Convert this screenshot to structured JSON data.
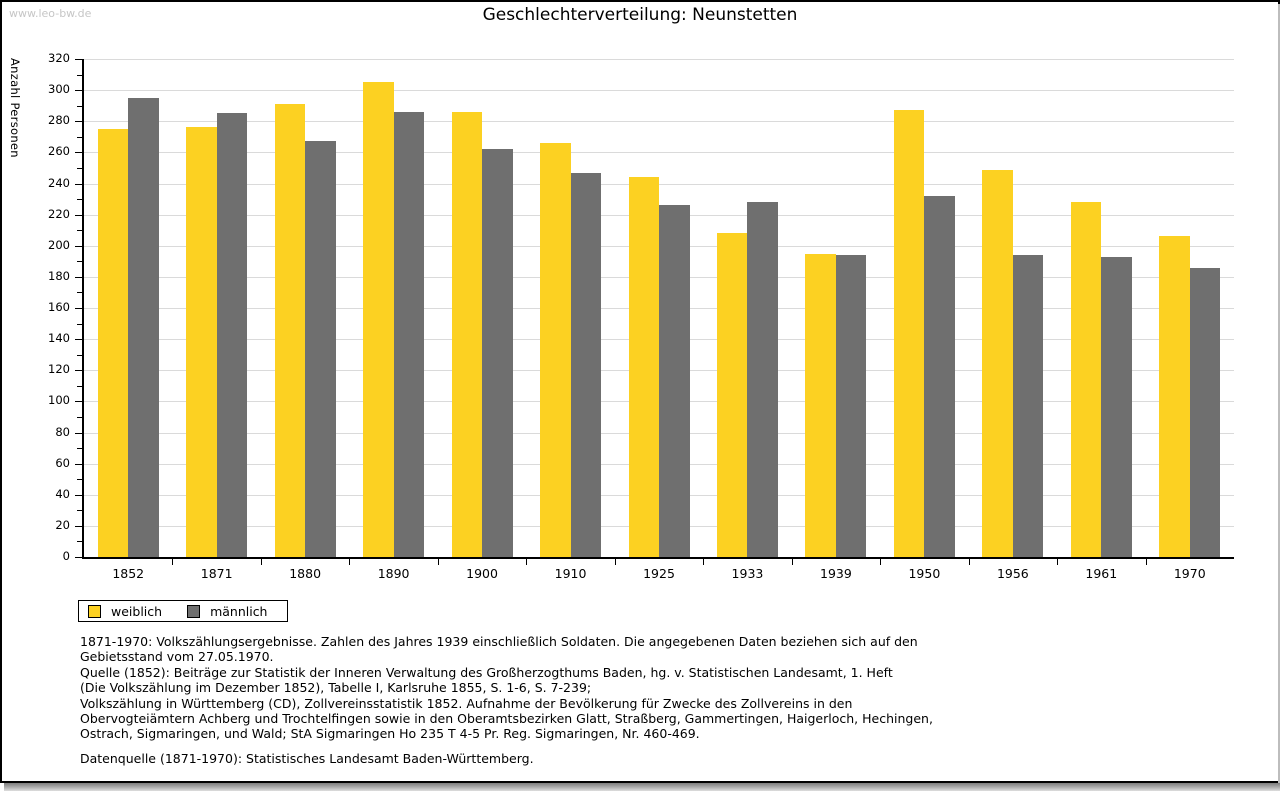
{
  "watermark": "www.leo-bw.de",
  "title": "Geschlechterverteilung: Neunstetten",
  "chart_data": {
    "type": "bar",
    "title": "Geschlechterverteilung: Neunstetten",
    "ylabel": "Anzahl Personen",
    "xlabel": "",
    "ylim": [
      0,
      320
    ],
    "ytick_step": 20,
    "ytick_minor_step": 10,
    "grid": true,
    "legend_position": "bottom-left",
    "categories": [
      "1852",
      "1871",
      "1880",
      "1890",
      "1900",
      "1910",
      "1925",
      "1933",
      "1939",
      "1950",
      "1956",
      "1961",
      "1970"
    ],
    "series": [
      {
        "name": "weiblich",
        "color": "#FCD122",
        "values": [
          275,
          276,
          291,
          305,
          286,
          266,
          244,
          208,
          195,
          287,
          249,
          228,
          206
        ]
      },
      {
        "name": "männlich",
        "color": "#6F6F6F",
        "values": [
          295,
          285,
          267,
          286,
          262,
          247,
          226,
          228,
          194,
          232,
          194,
          193,
          186
        ]
      }
    ]
  },
  "legend": {
    "items": [
      {
        "label": "weiblich",
        "color": "#FCD122"
      },
      {
        "label": "männlich",
        "color": "#6F6F6F"
      }
    ]
  },
  "footer": {
    "lines": [
      "1871-1970: Volkszählungsergebnisse. Zahlen des Jahres 1939 einschließlich Soldaten. Die angegebenen Daten beziehen sich auf den",
      "Gebietsstand vom 27.05.1970.",
      "Quelle (1852): Beiträge zur Statistik der Inneren Verwaltung des Großherzogthums Baden, hg. v. Statistischen Landesamt, 1. Heft",
      "(Die Volkszählung im Dezember 1852), Tabelle I, Karlsruhe 1855, S. 1-6, S. 7-239;",
      "Volkszählung in Württemberg (CD), Zollvereinsstatistik 1852. Aufnahme der Bevölkerung für Zwecke des Zollvereins in den",
      "Obervogteiämtern Achberg und Trochtelfingen sowie in den Oberamtsbezirken Glatt, Straßberg, Gammertingen, Haigerloch, Hechingen,",
      "Ostrach, Sigmaringen, und Wald; StA Sigmaringen Ho 235 T 4-5 Pr. Reg. Sigmaringen, Nr. 460-469."
    ],
    "datasource": "Datenquelle (1871-1970): Statistisches Landesamt Baden-Württemberg."
  }
}
